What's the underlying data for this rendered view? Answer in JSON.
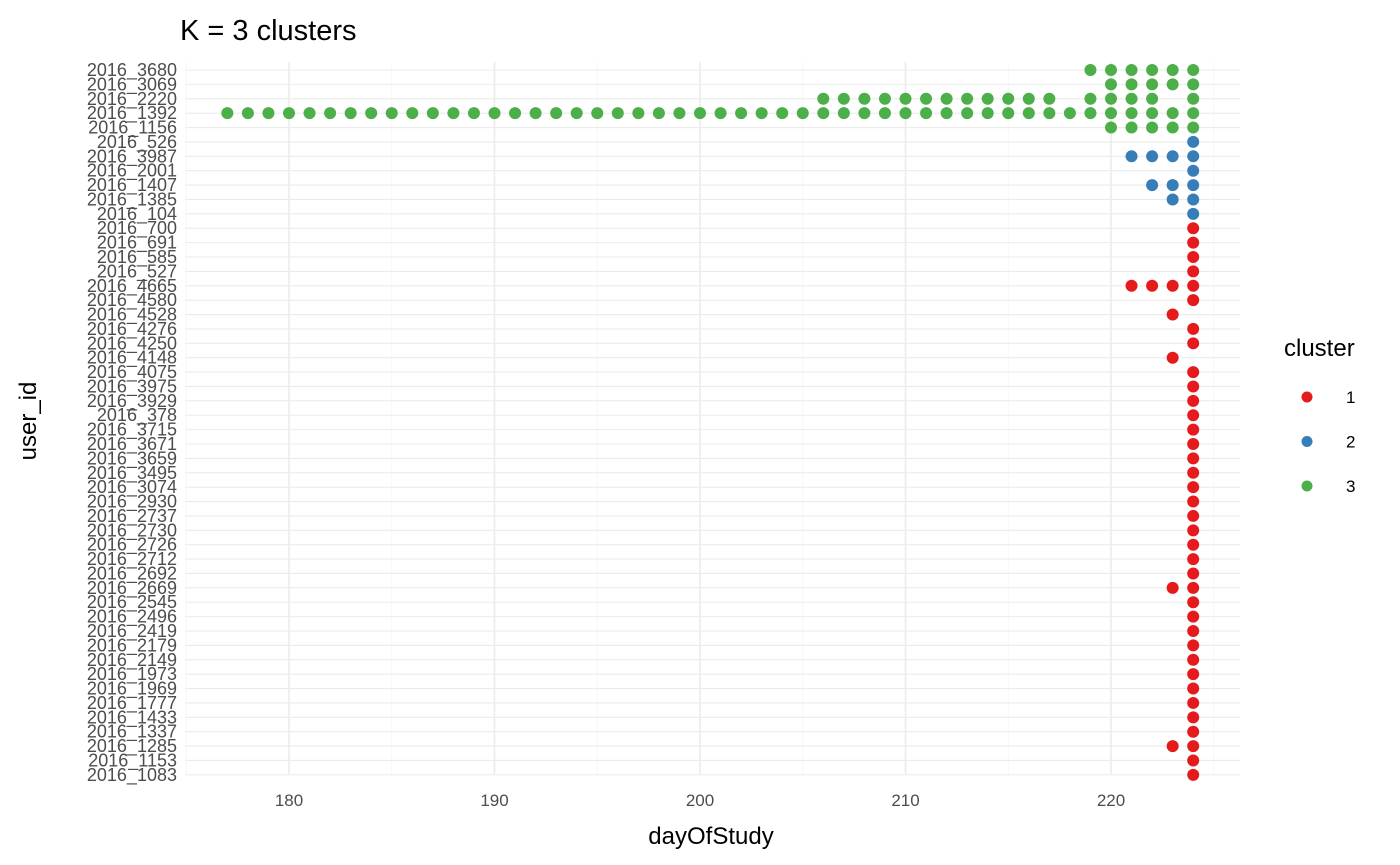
{
  "chart_data": {
    "type": "scatter",
    "title": "K = 3 clusters",
    "xlabel": "dayOfStudy",
    "ylabel": "user_id",
    "xlim": [
      175,
      226
    ],
    "x_ticks": [
      180,
      190,
      200,
      210,
      220
    ],
    "grid": true,
    "legend": {
      "title": "cluster",
      "placement": "right",
      "entries": [
        "1",
        "2",
        "3"
      ]
    },
    "colors": {
      "1": "#e41a1c",
      "2": "#377eb8",
      "3": "#4daf4a"
    },
    "categories": [
      "2016_3680",
      "2016_3069",
      "2016_2220",
      "2016_1392",
      "2016_1156",
      "2016_526",
      "2016_3987",
      "2016_2001",
      "2016_1407",
      "2016_1385",
      "2016_104",
      "2016_700",
      "2016_691",
      "2016_585",
      "2016_527",
      "2016_4665",
      "2016_4580",
      "2016_4528",
      "2016_4276",
      "2016_4250",
      "2016_4148",
      "2016_4075",
      "2016_3975",
      "2016_3929",
      "2016_378",
      "2016_3715",
      "2016_3671",
      "2016_3659",
      "2016_3495",
      "2016_3074",
      "2016_2930",
      "2016_2737",
      "2016_2730",
      "2016_2726",
      "2016_2712",
      "2016_2692",
      "2016_2669",
      "2016_2545",
      "2016_2496",
      "2016_2419",
      "2016_2179",
      "2016_2149",
      "2016_1973",
      "2016_1969",
      "2016_1777",
      "2016_1433",
      "2016_1337",
      "2016_1285",
      "2016_1153",
      "2016_1083"
    ],
    "rows": [
      {
        "user_id": "2016_3680",
        "cluster": "3",
        "days": [
          219,
          220,
          221,
          222,
          223,
          224
        ]
      },
      {
        "user_id": "2016_3069",
        "cluster": "3",
        "days": [
          220,
          221,
          222,
          223,
          224
        ]
      },
      {
        "user_id": "2016_2220",
        "cluster": "3",
        "days": [
          206,
          207,
          208,
          209,
          210,
          211,
          212,
          213,
          214,
          215,
          216,
          217,
          219,
          220,
          221,
          222,
          224
        ]
      },
      {
        "user_id": "2016_1392",
        "cluster": "3",
        "days": [
          177,
          178,
          179,
          180,
          181,
          182,
          183,
          184,
          185,
          186,
          187,
          188,
          189,
          190,
          191,
          192,
          193,
          194,
          195,
          196,
          197,
          198,
          199,
          200,
          201,
          202,
          203,
          204,
          205,
          206,
          207,
          208,
          209,
          210,
          211,
          212,
          213,
          214,
          215,
          216,
          217,
          218,
          219,
          220,
          221,
          222,
          223,
          224
        ]
      },
      {
        "user_id": "2016_1156",
        "cluster": "3",
        "days": [
          220,
          221,
          222,
          223,
          224
        ]
      },
      {
        "user_id": "2016_526",
        "cluster": "2",
        "days": [
          224
        ]
      },
      {
        "user_id": "2016_3987",
        "cluster": "2",
        "days": [
          221,
          222,
          223,
          224
        ]
      },
      {
        "user_id": "2016_2001",
        "cluster": "2",
        "days": [
          224
        ]
      },
      {
        "user_id": "2016_1407",
        "cluster": "2",
        "days": [
          222,
          223,
          224
        ]
      },
      {
        "user_id": "2016_1385",
        "cluster": "2",
        "days": [
          223,
          224
        ]
      },
      {
        "user_id": "2016_104",
        "cluster": "2",
        "days": [
          224
        ]
      },
      {
        "user_id": "2016_700",
        "cluster": "1",
        "days": [
          224
        ]
      },
      {
        "user_id": "2016_691",
        "cluster": "1",
        "days": [
          224
        ]
      },
      {
        "user_id": "2016_585",
        "cluster": "1",
        "days": [
          224
        ]
      },
      {
        "user_id": "2016_527",
        "cluster": "1",
        "days": [
          224
        ]
      },
      {
        "user_id": "2016_4665",
        "cluster": "1",
        "days": [
          221,
          222,
          223,
          224
        ]
      },
      {
        "user_id": "2016_4580",
        "cluster": "1",
        "days": [
          224
        ]
      },
      {
        "user_id": "2016_4528",
        "cluster": "1",
        "days": [
          223
        ]
      },
      {
        "user_id": "2016_4276",
        "cluster": "1",
        "days": [
          224
        ]
      },
      {
        "user_id": "2016_4250",
        "cluster": "1",
        "days": [
          224
        ]
      },
      {
        "user_id": "2016_4148",
        "cluster": "1",
        "days": [
          223
        ]
      },
      {
        "user_id": "2016_4075",
        "cluster": "1",
        "days": [
          224
        ]
      },
      {
        "user_id": "2016_3975",
        "cluster": "1",
        "days": [
          224
        ]
      },
      {
        "user_id": "2016_3929",
        "cluster": "1",
        "days": [
          224
        ]
      },
      {
        "user_id": "2016_378",
        "cluster": "1",
        "days": [
          224
        ]
      },
      {
        "user_id": "2016_3715",
        "cluster": "1",
        "days": [
          224
        ]
      },
      {
        "user_id": "2016_3671",
        "cluster": "1",
        "days": [
          224
        ]
      },
      {
        "user_id": "2016_3659",
        "cluster": "1",
        "days": [
          224
        ]
      },
      {
        "user_id": "2016_3495",
        "cluster": "1",
        "days": [
          224
        ]
      },
      {
        "user_id": "2016_3074",
        "cluster": "1",
        "days": [
          224
        ]
      },
      {
        "user_id": "2016_2930",
        "cluster": "1",
        "days": [
          224
        ]
      },
      {
        "user_id": "2016_2737",
        "cluster": "1",
        "days": [
          224
        ]
      },
      {
        "user_id": "2016_2730",
        "cluster": "1",
        "days": [
          224
        ]
      },
      {
        "user_id": "2016_2726",
        "cluster": "1",
        "days": [
          224
        ]
      },
      {
        "user_id": "2016_2712",
        "cluster": "1",
        "days": [
          224
        ]
      },
      {
        "user_id": "2016_2692",
        "cluster": "1",
        "days": [
          224
        ]
      },
      {
        "user_id": "2016_2669",
        "cluster": "1",
        "days": [
          223,
          224
        ]
      },
      {
        "user_id": "2016_2545",
        "cluster": "1",
        "days": [
          224
        ]
      },
      {
        "user_id": "2016_2496",
        "cluster": "1",
        "days": [
          224
        ]
      },
      {
        "user_id": "2016_2419",
        "cluster": "1",
        "days": [
          224
        ]
      },
      {
        "user_id": "2016_2179",
        "cluster": "1",
        "days": [
          224
        ]
      },
      {
        "user_id": "2016_2149",
        "cluster": "1",
        "days": [
          224
        ]
      },
      {
        "user_id": "2016_1973",
        "cluster": "1",
        "days": [
          224
        ]
      },
      {
        "user_id": "2016_1969",
        "cluster": "1",
        "days": [
          224
        ]
      },
      {
        "user_id": "2016_1777",
        "cluster": "1",
        "days": [
          224
        ]
      },
      {
        "user_id": "2016_1433",
        "cluster": "1",
        "days": [
          224
        ]
      },
      {
        "user_id": "2016_1337",
        "cluster": "1",
        "days": [
          224
        ]
      },
      {
        "user_id": "2016_1285",
        "cluster": "1",
        "days": [
          223,
          224
        ]
      },
      {
        "user_id": "2016_1153",
        "cluster": "1",
        "days": [
          224
        ]
      },
      {
        "user_id": "2016_1083",
        "cluster": "1",
        "days": [
          224
        ]
      }
    ]
  }
}
